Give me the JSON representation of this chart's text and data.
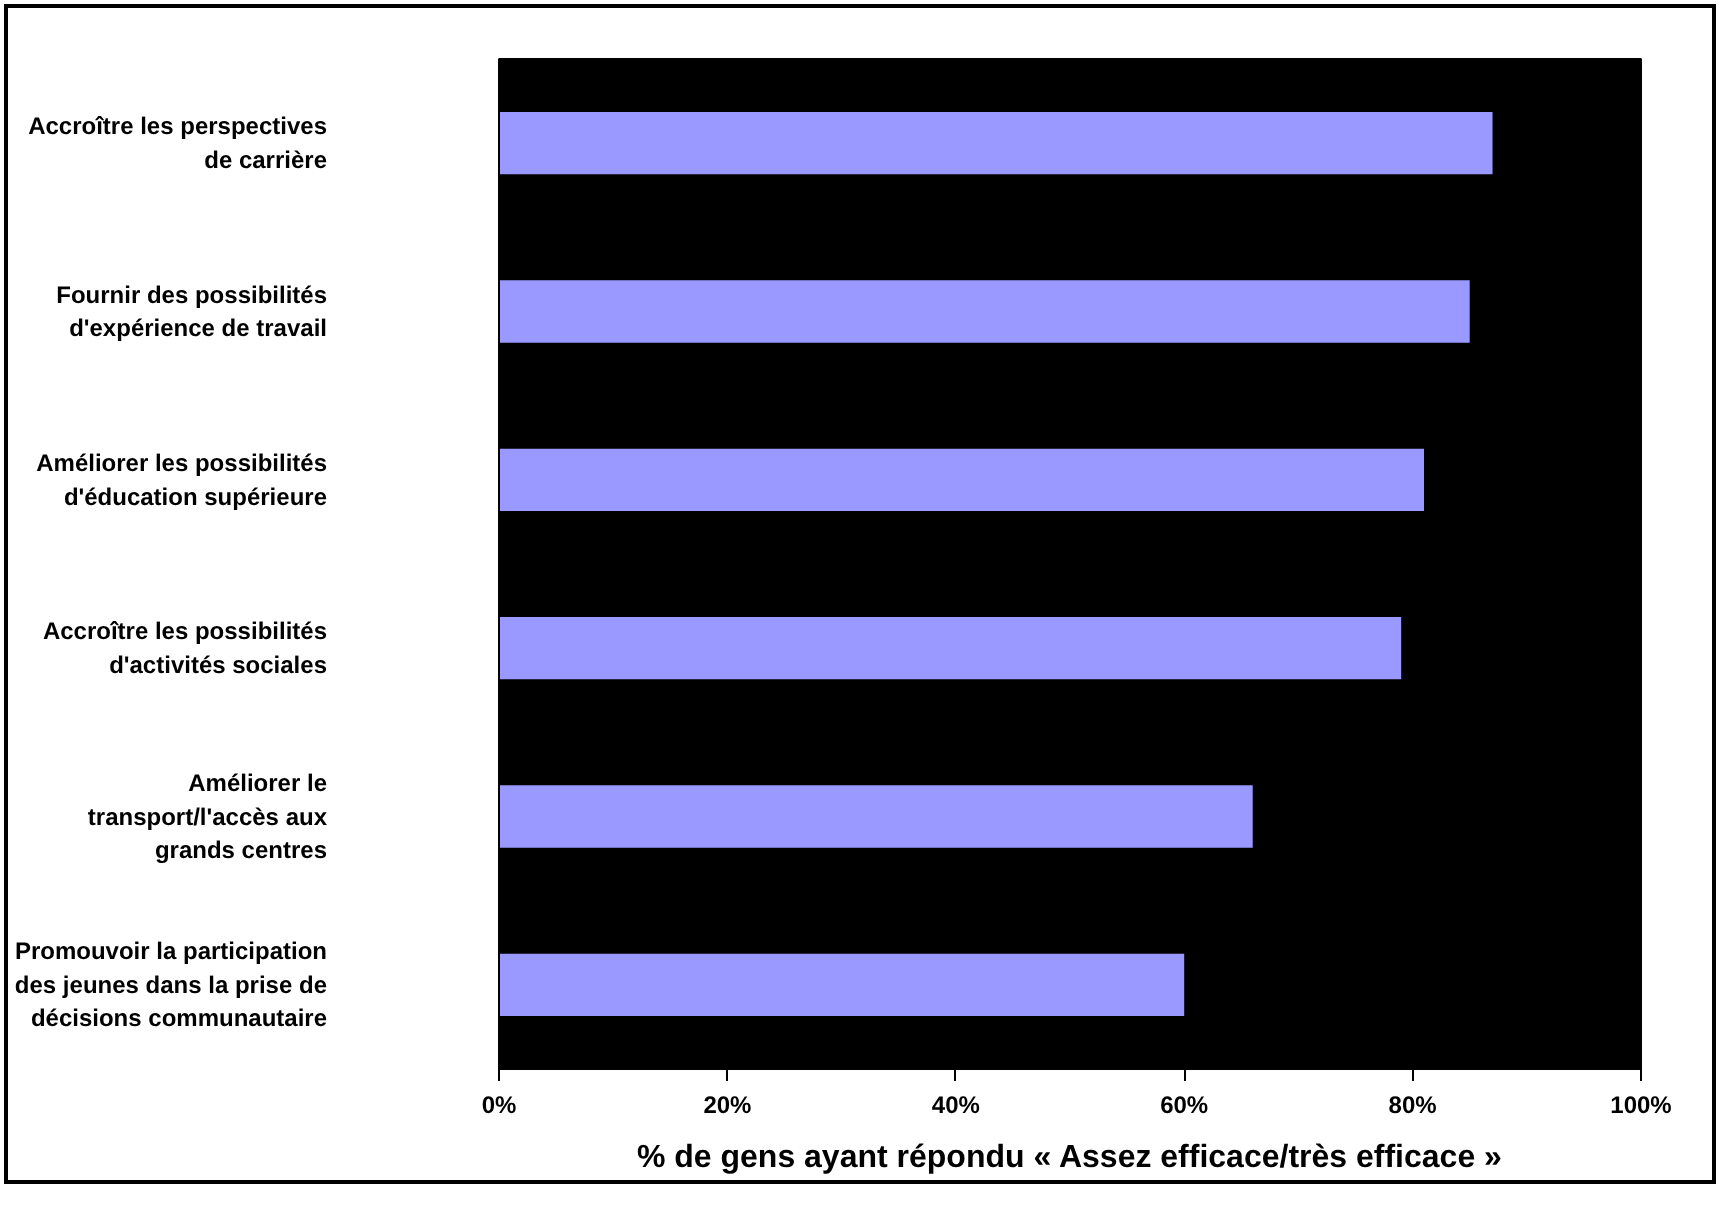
{
  "chart_data": {
    "type": "bar",
    "orientation": "horizontal",
    "xlabel": "% de gens ayant répondu « Assez efficace/très efficace »",
    "categories": [
      "Accroître les perspectives\nde carrière",
      "Fournir des possibilités\nd'expérience de travail",
      "Améliorer les possibilités\nd'éducation supérieure",
      "Accroître les possibilités\nd'activités sociales",
      "Améliorer le\ntransport/l'accès aux\ngrands centres",
      "Promouvoir la participation\ndes jeunes dans la prise de\ndécisions communautaire"
    ],
    "values": [
      87,
      85,
      81,
      79,
      66,
      60
    ],
    "color": "#9999ff",
    "xlim": [
      0,
      100
    ],
    "xticks": [
      {
        "value": 0,
        "label": "0%"
      },
      {
        "value": 20,
        "label": "20%"
      },
      {
        "value": 40,
        "label": "40%"
      },
      {
        "value": 60,
        "label": "60%"
      },
      {
        "value": 80,
        "label": "80%"
      },
      {
        "value": 100,
        "label": "100%"
      }
    ],
    "grid": false
  }
}
